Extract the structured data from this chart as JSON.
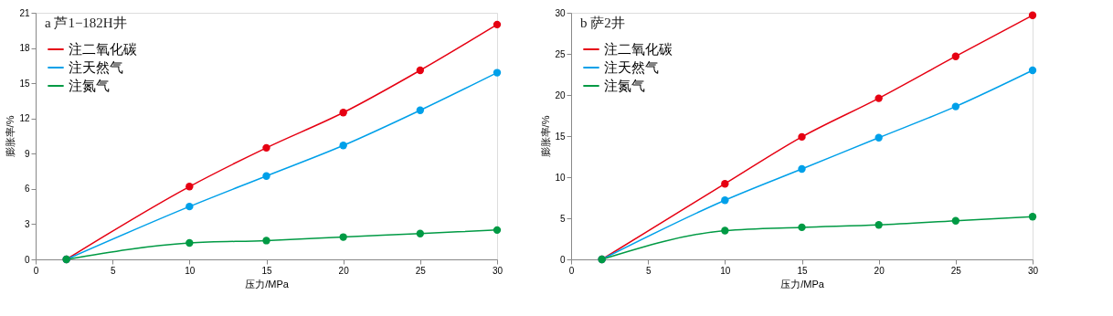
{
  "chart_data": [
    {
      "type": "line",
      "title": "a 芦1−182H井",
      "xlabel": "压力/MPa",
      "ylabel": "膨胀率/%",
      "x": [
        2,
        10,
        15,
        20,
        25,
        30
      ],
      "xlim": [
        0,
        30
      ],
      "xticks": [
        0,
        5,
        10,
        15,
        20,
        25,
        30
      ],
      "ylim": [
        0,
        21
      ],
      "yticks": [
        0,
        3,
        6,
        9,
        12,
        15,
        18,
        21
      ],
      "grid": false,
      "legend": "top left",
      "marker": "circle",
      "line_style": "solid",
      "series": [
        {
          "name": "注二氧化碳",
          "color": "#e60012",
          "values": [
            0,
            6.2,
            9.5,
            12.5,
            16.1,
            20.0
          ]
        },
        {
          "name": "注天然气",
          "color": "#00a0e9",
          "values": [
            0,
            4.5,
            7.1,
            9.7,
            12.7,
            15.9
          ]
        },
        {
          "name": "注氮气",
          "color": "#009a44",
          "values": [
            0,
            1.4,
            1.6,
            1.9,
            2.2,
            2.5
          ]
        }
      ]
    },
    {
      "type": "line",
      "title": "b 萨2井",
      "xlabel": "压力/MPa",
      "ylabel": "膨胀率/%",
      "x": [
        2,
        10,
        15,
        20,
        25,
        30
      ],
      "xlim": [
        0,
        30
      ],
      "xticks": [
        0,
        5,
        10,
        15,
        20,
        25,
        30
      ],
      "ylim": [
        0,
        30
      ],
      "yticks": [
        0,
        5,
        10,
        15,
        20,
        25,
        30
      ],
      "grid": false,
      "legend": "top left",
      "marker": "circle",
      "line_style": "solid",
      "series": [
        {
          "name": "注二氧化碳",
          "color": "#e60012",
          "values": [
            0,
            9.2,
            14.9,
            19.6,
            24.7,
            29.7
          ]
        },
        {
          "name": "注天然气",
          "color": "#00a0e9",
          "values": [
            0,
            7.2,
            11.0,
            14.8,
            18.6,
            23.0
          ]
        },
        {
          "name": "注氮气",
          "color": "#009a44",
          "values": [
            0,
            3.5,
            3.9,
            4.2,
            4.7,
            5.2
          ]
        }
      ]
    }
  ]
}
